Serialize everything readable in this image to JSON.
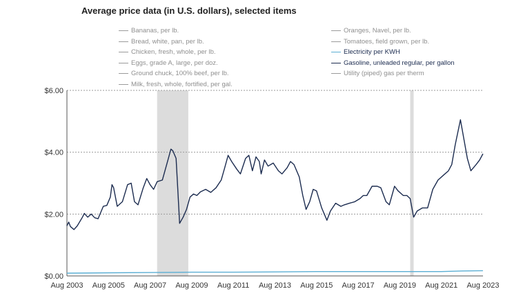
{
  "chart_data": {
    "type": "line",
    "title": "Average price data (in U.S. dollars), selected items",
    "xlabel": "",
    "ylabel": "",
    "ylim": [
      0,
      6
    ],
    "yticks": [
      "$0.00",
      "$2.00",
      "$4.00",
      "$6.00"
    ],
    "y_tick_values": [
      0,
      2,
      4,
      6
    ],
    "xticks": [
      "Aug 2003",
      "Aug 2005",
      "Aug 2007",
      "Aug 2009",
      "Aug 2011",
      "Aug 2013",
      "Aug 2015",
      "Aug 2017",
      "Aug 2019",
      "Aug 2021",
      "Aug 2023"
    ],
    "x_tick_values": [
      2003.583,
      2005.583,
      2007.583,
      2009.583,
      2011.583,
      2013.583,
      2015.583,
      2017.583,
      2019.583,
      2021.583,
      2023.583
    ],
    "xlim": [
      2003.583,
      2023.583
    ],
    "grid": "horizontal dotted",
    "legend": {
      "placement": "top",
      "left": [
        {
          "name": "Bananas, per lb.",
          "active": false
        },
        {
          "name": "Bread, white, pan, per lb.",
          "active": false
        },
        {
          "name": "Chicken, fresh, whole, per lb.",
          "active": false
        },
        {
          "name": "Eggs, grade A, large, per doz.",
          "active": false
        },
        {
          "name": "Ground chuck, 100% beef, per lb.",
          "active": false
        },
        {
          "name": "Milk, fresh, whole, fortified, per gal.",
          "active": false
        }
      ],
      "right": [
        {
          "name": "Oranges, Navel, per lb.",
          "active": false
        },
        {
          "name": "Tomatoes, field grown, per lb.",
          "active": false
        },
        {
          "name": "Electricity per KWH",
          "active": true,
          "color": "#5aaed3"
        },
        {
          "name": "Gasoline, unleaded regular, per gallon",
          "active": true,
          "color": "#1b2b4f"
        },
        {
          "name": "Utility (piped) gas per therm",
          "active": false
        }
      ]
    },
    "recessions": [
      [
        2007.917,
        2009.417
      ],
      [
        2020.083,
        2020.25
      ]
    ],
    "series": [
      {
        "name": "Gasoline, unleaded regular, per gallon",
        "color": "#1b2b4f",
        "points": [
          [
            2003.58,
            1.62
          ],
          [
            2003.67,
            1.74
          ],
          [
            2003.75,
            1.6
          ],
          [
            2003.92,
            1.5
          ],
          [
            2004.08,
            1.62
          ],
          [
            2004.33,
            1.9
          ],
          [
            2004.42,
            2.02
          ],
          [
            2004.58,
            1.9
          ],
          [
            2004.75,
            2.0
          ],
          [
            2004.92,
            1.88
          ],
          [
            2005.08,
            1.85
          ],
          [
            2005.33,
            2.25
          ],
          [
            2005.5,
            2.28
          ],
          [
            2005.67,
            2.55
          ],
          [
            2005.75,
            2.95
          ],
          [
            2005.83,
            2.85
          ],
          [
            2006.0,
            2.25
          ],
          [
            2006.25,
            2.4
          ],
          [
            2006.5,
            2.95
          ],
          [
            2006.67,
            3.0
          ],
          [
            2006.83,
            2.4
          ],
          [
            2007.0,
            2.3
          ],
          [
            2007.25,
            2.85
          ],
          [
            2007.42,
            3.15
          ],
          [
            2007.58,
            2.95
          ],
          [
            2007.75,
            2.8
          ],
          [
            2007.92,
            3.05
          ],
          [
            2008.17,
            3.1
          ],
          [
            2008.42,
            3.7
          ],
          [
            2008.58,
            4.1
          ],
          [
            2008.67,
            4.05
          ],
          [
            2008.83,
            3.8
          ],
          [
            2008.92,
            2.7
          ],
          [
            2009.0,
            1.7
          ],
          [
            2009.17,
            1.9
          ],
          [
            2009.33,
            2.15
          ],
          [
            2009.5,
            2.55
          ],
          [
            2009.67,
            2.65
          ],
          [
            2009.83,
            2.6
          ],
          [
            2010.0,
            2.72
          ],
          [
            2010.25,
            2.8
          ],
          [
            2010.5,
            2.7
          ],
          [
            2010.75,
            2.85
          ],
          [
            2011.0,
            3.1
          ],
          [
            2011.17,
            3.5
          ],
          [
            2011.33,
            3.9
          ],
          [
            2011.5,
            3.7
          ],
          [
            2011.75,
            3.45
          ],
          [
            2011.92,
            3.3
          ],
          [
            2012.17,
            3.8
          ],
          [
            2012.33,
            3.9
          ],
          [
            2012.5,
            3.4
          ],
          [
            2012.67,
            3.85
          ],
          [
            2012.83,
            3.7
          ],
          [
            2012.92,
            3.3
          ],
          [
            2013.08,
            3.75
          ],
          [
            2013.25,
            3.55
          ],
          [
            2013.5,
            3.65
          ],
          [
            2013.75,
            3.4
          ],
          [
            2013.92,
            3.3
          ],
          [
            2014.17,
            3.5
          ],
          [
            2014.33,
            3.7
          ],
          [
            2014.5,
            3.6
          ],
          [
            2014.75,
            3.2
          ],
          [
            2014.92,
            2.6
          ],
          [
            2015.08,
            2.15
          ],
          [
            2015.25,
            2.4
          ],
          [
            2015.42,
            2.8
          ],
          [
            2015.58,
            2.75
          ],
          [
            2015.83,
            2.2
          ],
          [
            2016.08,
            1.8
          ],
          [
            2016.25,
            2.1
          ],
          [
            2016.5,
            2.35
          ],
          [
            2016.75,
            2.25
          ],
          [
            2016.92,
            2.3
          ],
          [
            2017.17,
            2.35
          ],
          [
            2017.42,
            2.4
          ],
          [
            2017.67,
            2.5
          ],
          [
            2017.83,
            2.6
          ],
          [
            2018.0,
            2.6
          ],
          [
            2018.25,
            2.9
          ],
          [
            2018.5,
            2.9
          ],
          [
            2018.67,
            2.85
          ],
          [
            2018.92,
            2.4
          ],
          [
            2019.08,
            2.3
          ],
          [
            2019.33,
            2.9
          ],
          [
            2019.5,
            2.75
          ],
          [
            2019.75,
            2.6
          ],
          [
            2019.92,
            2.6
          ],
          [
            2020.08,
            2.5
          ],
          [
            2020.25,
            1.9
          ],
          [
            2020.42,
            2.1
          ],
          [
            2020.67,
            2.2
          ],
          [
            2020.92,
            2.2
          ],
          [
            2021.17,
            2.8
          ],
          [
            2021.42,
            3.1
          ],
          [
            2021.67,
            3.25
          ],
          [
            2021.92,
            3.4
          ],
          [
            2022.08,
            3.6
          ],
          [
            2022.25,
            4.25
          ],
          [
            2022.5,
            5.05
          ],
          [
            2022.67,
            4.4
          ],
          [
            2022.83,
            3.8
          ],
          [
            2023.0,
            3.4
          ],
          [
            2023.25,
            3.6
          ],
          [
            2023.42,
            3.75
          ],
          [
            2023.58,
            3.95
          ]
        ]
      },
      {
        "name": "Electricity per KWH",
        "color": "#5aaed3",
        "points": [
          [
            2003.58,
            0.09
          ],
          [
            2005.58,
            0.1
          ],
          [
            2007.58,
            0.11
          ],
          [
            2009.58,
            0.12
          ],
          [
            2011.58,
            0.12
          ],
          [
            2013.58,
            0.13
          ],
          [
            2015.58,
            0.14
          ],
          [
            2017.58,
            0.14
          ],
          [
            2019.58,
            0.14
          ],
          [
            2021.58,
            0.14
          ],
          [
            2022.58,
            0.16
          ],
          [
            2023.58,
            0.17
          ]
        ]
      }
    ]
  }
}
